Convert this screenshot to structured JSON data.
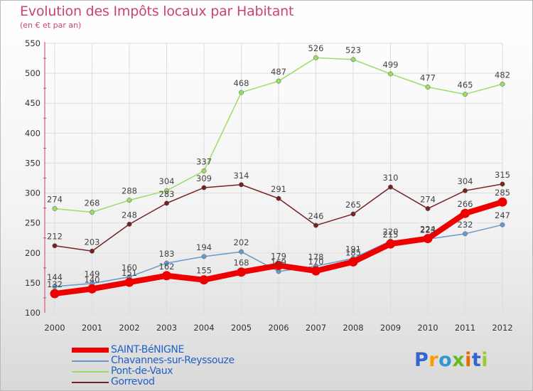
{
  "header": {
    "title": "Evolution des Impôts locaux par Habitant",
    "subtitle": "(en € et par an)"
  },
  "colors": {
    "saint_benigne": "#ee0000",
    "chavannes": "#6699cc",
    "pont_de_vaux": "#99dd66",
    "gorrevod": "#772222",
    "axis_text": "#333333"
  },
  "logo": {
    "text": "Proxiti",
    "letters": [
      "P",
      "r",
      "o",
      "x",
      "i",
      "t",
      "i"
    ],
    "letter_colors": [
      "#3366cc",
      "#ff9900",
      "#3399cc",
      "#66bb22",
      "#ee6600",
      "#3366cc",
      "#99cc33"
    ]
  },
  "chart_data": {
    "type": "line",
    "title": "Evolution des Impôts locaux par Habitant",
    "subtitle": "(en € et par an)",
    "xlabel": "",
    "ylabel": "",
    "categories": [
      "2000",
      "2001",
      "2002",
      "2003",
      "2004",
      "2005",
      "2006",
      "2007",
      "2008",
      "2009",
      "2010",
      "2011",
      "2012"
    ],
    "ylim": [
      100,
      550
    ],
    "yticks": [
      100,
      150,
      200,
      250,
      300,
      350,
      400,
      450,
      500,
      550
    ],
    "grid": true,
    "legend_position": "bottom-left",
    "series": [
      {
        "name": "SAINT-BéNIGNE",
        "key": "saint_benigne",
        "values": [
          132,
          140,
          151,
          162,
          155,
          168,
          179,
          170,
          185,
          215,
          224,
          266,
          285
        ]
      },
      {
        "name": "Chavannes-sur-Reyssouze",
        "key": "chavannes",
        "values": [
          144,
          149,
          160,
          183,
          194,
          202,
          169,
          178,
          191,
          220,
          223,
          232,
          247
        ]
      },
      {
        "name": "Pont-de-Vaux",
        "key": "pont_de_vaux",
        "values": [
          274,
          268,
          288,
          304,
          337,
          468,
          487,
          526,
          523,
          499,
          477,
          465,
          482
        ]
      },
      {
        "name": "Gorrevod",
        "key": "gorrevod",
        "values": [
          212,
          203,
          248,
          283,
          309,
          314,
          291,
          246,
          265,
          310,
          274,
          304,
          315
        ]
      }
    ]
  }
}
